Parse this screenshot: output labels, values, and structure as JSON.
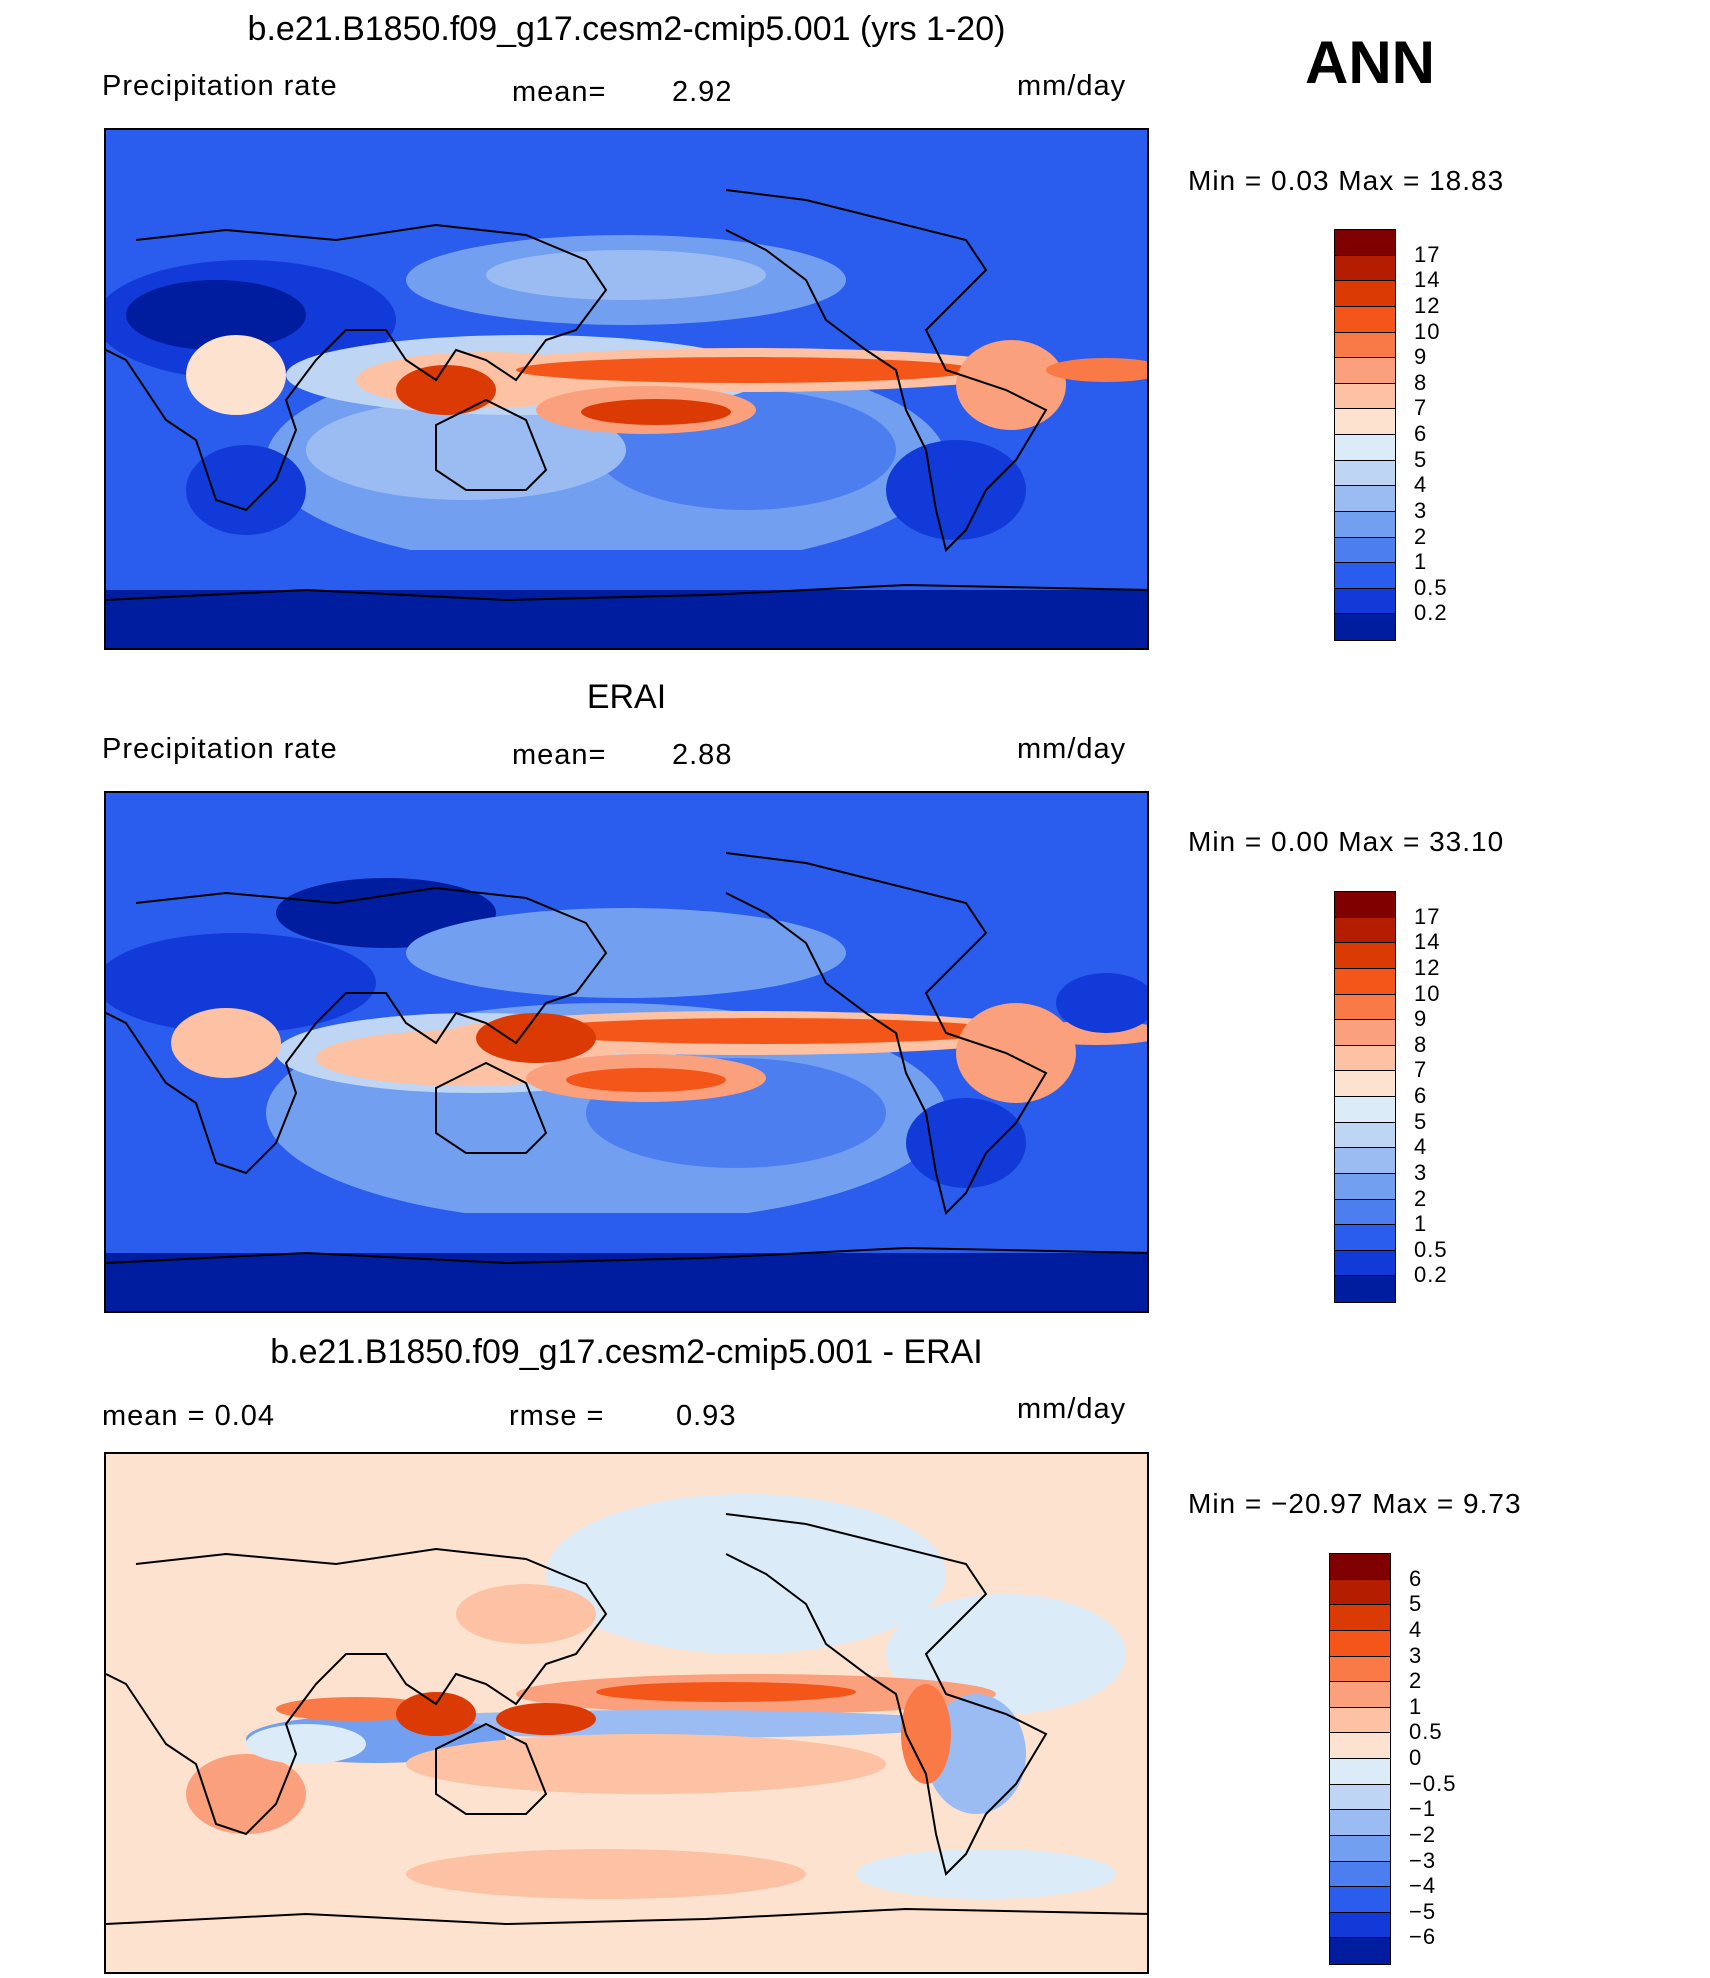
{
  "season": "ANN",
  "units": "mm/day",
  "panels": [
    {
      "id": "model",
      "title": "b.e21.B1850.f09_g17.cesm2-cmip5.001 (yrs 1-20)",
      "left_text": "Precipitation  rate",
      "mid_label": "mean=",
      "mid_value": "2.92",
      "right_text": "mm/day",
      "minmax": "Min  =     0.03  Max  =    18.83"
    },
    {
      "id": "obs",
      "title": "ERAI",
      "left_text": "Precipitation  rate",
      "mid_label": "mean=",
      "mid_value": "2.88",
      "right_text": "mm/day",
      "minmax": "Min  =     0.00  Max  =    33.10"
    },
    {
      "id": "diff",
      "title": "b.e21.B1850.f09_g17.cesm2-cmip5.001 - ERAI",
      "left_text": "mean  =      0.04",
      "mid_label": "rmse  =",
      "mid_value": "0.93",
      "right_text": "mm/day",
      "minmax": "Min  = −20.97  Max  =      9.73"
    }
  ],
  "colorbars": {
    "precip": {
      "labels": [
        "17",
        "14",
        "12",
        "10",
        "9",
        "8",
        "7",
        "6",
        "5",
        "4",
        "3",
        "2",
        "1",
        "0.5",
        "0.2"
      ],
      "colors": [
        "#800000",
        "#b51d00",
        "#dc3a05",
        "#f4561a",
        "#fa7a47",
        "#fba07c",
        "#fcc2a3",
        "#fde3cf",
        "#dcebf8",
        "#bed6f4",
        "#9bbcf2",
        "#739ff0",
        "#4d7ef0",
        "#2a5ced",
        "#123ad9",
        "#001c9f"
      ]
    },
    "diff": {
      "labels": [
        "6",
        "5",
        "4",
        "3",
        "2",
        "1",
        "0.5",
        "0",
        "−0.5",
        "−1",
        "−2",
        "−3",
        "−4",
        "−5",
        "−6"
      ],
      "colors": [
        "#800000",
        "#b51d00",
        "#dc3a05",
        "#f4561a",
        "#fa7a47",
        "#fba07c",
        "#fcc2a3",
        "#fde3cf",
        "#dcebf8",
        "#bed6f4",
        "#9bbcf2",
        "#739ff0",
        "#4d7ef0",
        "#2a5ced",
        "#123ad9",
        "#001c9f"
      ]
    }
  },
  "chart_data": [
    {
      "type": "heatmap",
      "title": "b.e21.B1850.f09_g17.cesm2-cmip5.001 (yrs 1-20)",
      "variable": "Precipitation rate",
      "units": "mm/day",
      "mean": 2.92,
      "min": 0.03,
      "max": 18.83,
      "contour_levels": [
        0.2,
        0.5,
        1,
        2,
        3,
        4,
        5,
        6,
        7,
        8,
        9,
        10,
        12,
        14,
        17
      ]
    },
    {
      "type": "heatmap",
      "title": "ERAI",
      "variable": "Precipitation rate",
      "units": "mm/day",
      "mean": 2.88,
      "min": 0.0,
      "max": 33.1,
      "contour_levels": [
        0.2,
        0.5,
        1,
        2,
        3,
        4,
        5,
        6,
        7,
        8,
        9,
        10,
        12,
        14,
        17
      ]
    },
    {
      "type": "heatmap",
      "title": "b.e21.B1850.f09_g17.cesm2-cmip5.001 - ERAI",
      "units": "mm/day",
      "mean": 0.04,
      "rmse": 0.93,
      "min": -20.97,
      "max": 9.73,
      "contour_levels": [
        -6,
        -5,
        -4,
        -3,
        -2,
        -1,
        -0.5,
        0,
        0.5,
        1,
        2,
        3,
        4,
        5,
        6
      ]
    }
  ]
}
